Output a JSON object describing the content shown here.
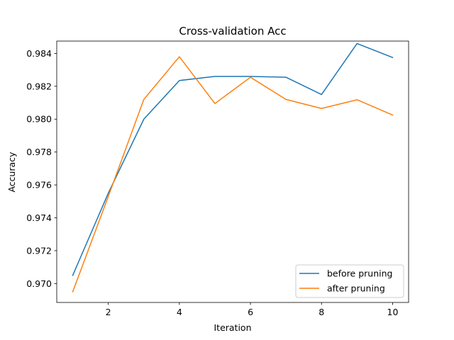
{
  "chart_data": {
    "type": "line",
    "title": "Cross-validation Acc",
    "xlabel": "Iteration",
    "ylabel": "Accuracy",
    "x": [
      1,
      2,
      3,
      4,
      5,
      6,
      7,
      8,
      9,
      10
    ],
    "xlim": [
      0.55,
      10.45
    ],
    "ylim": [
      0.96885,
      0.98475
    ],
    "xticks": [
      2,
      4,
      6,
      8,
      10
    ],
    "xtick_labels": [
      "2",
      "4",
      "6",
      "8",
      "10"
    ],
    "yticks": [
      0.97,
      0.972,
      0.974,
      0.976,
      0.978,
      0.98,
      0.982,
      0.984
    ],
    "ytick_labels": [
      "0.970",
      "0.972",
      "0.974",
      "0.976",
      "0.978",
      "0.980",
      "0.982",
      "0.984"
    ],
    "grid": false,
    "legend_position": "lower-right",
    "series": [
      {
        "name": "before pruning",
        "color": "#1f77b4",
        "values": [
          0.9705,
          0.9755,
          0.98,
          0.98235,
          0.9826,
          0.9826,
          0.98255,
          0.9815,
          0.9846,
          0.98375
        ]
      },
      {
        "name": "after pruning",
        "color": "#ff7f0e",
        "values": [
          0.9695,
          0.9753,
          0.9812,
          0.9838,
          0.98095,
          0.98255,
          0.9812,
          0.98065,
          0.98118,
          0.98025
        ]
      }
    ]
  }
}
